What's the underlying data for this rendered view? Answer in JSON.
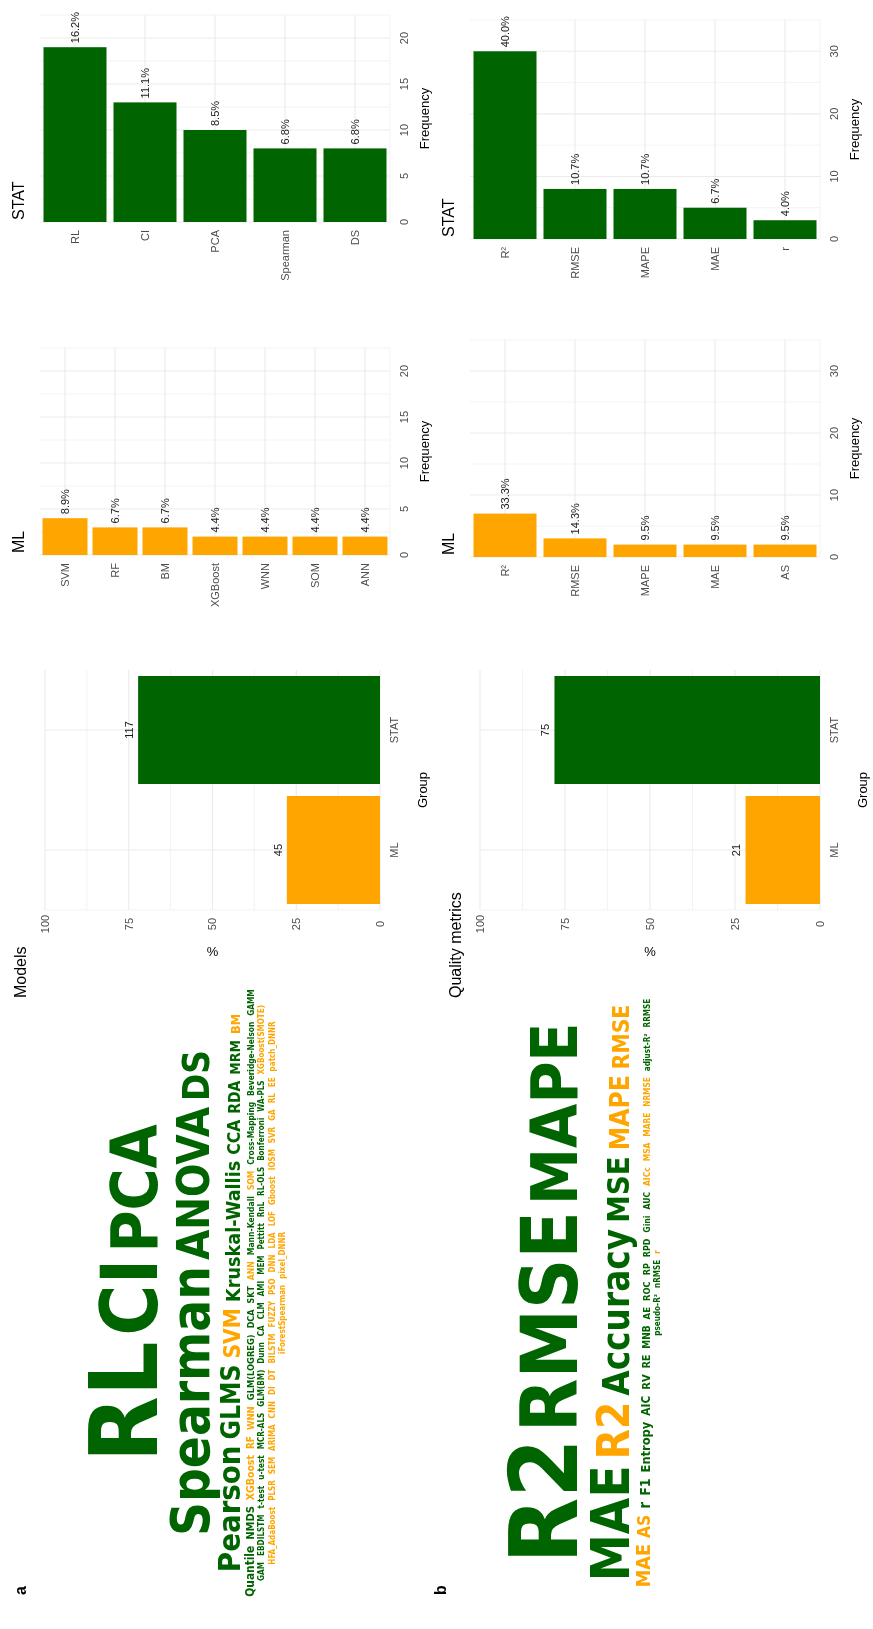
{
  "chart_data": [
    {
      "type": "bar",
      "title": "STAT",
      "ylabel": "Frequency",
      "categories": [
        "RL",
        "CI",
        "PCA",
        "Spearman",
        "DS"
      ],
      "values": [
        19,
        13,
        10,
        8,
        8
      ],
      "color": "#006400",
      "ylim": [
        0,
        22.5
      ],
      "yticks": [
        0,
        {
          "value": 2.5,
          "label": null
        },
        5,
        {
          "value": 7.5,
          "label": null
        },
        10,
        {
          "value": 12.5,
          "label": null
        },
        15,
        {
          "value": 17.5,
          "label": null
        },
        20,
        {
          "value": 22.5,
          "label": null
        }
      ],
      "grid": true,
      "annotations": [
        {
          "text": "16.2%",
          "x": "RL",
          "y": 19
        },
        {
          "text": "11.1%",
          "x": "CI",
          "y": 13
        },
        {
          "text": "8.5%",
          "x": "PCA",
          "y": 10
        },
        {
          "text": "6.8%",
          "x": "Spearman",
          "y": 8
        },
        {
          "text": "6.8%",
          "x": "DS",
          "y": 8
        }
      ]
    },
    {
      "type": "bar",
      "title": "STAT",
      "ylabel": "Frequency",
      "categories": [
        "R²",
        "RMSE",
        "MAPE",
        "MAE",
        "r"
      ],
      "values": [
        30,
        8,
        8,
        5,
        3
      ],
      "color": "#006400",
      "ylim": [
        0,
        35
      ],
      "yticks": [
        0,
        {
          "value": 5,
          "label": null
        },
        10,
        {
          "value": 15,
          "label": null
        },
        20,
        {
          "value": 25,
          "label": null
        },
        30,
        {
          "value": 35,
          "label": null
        }
      ],
      "grid": true,
      "annotations": [
        {
          "text": "40.0%",
          "x": "R²",
          "y": 30
        },
        {
          "text": "10.7%",
          "x": "RMSE",
          "y": 8
        },
        {
          "text": "10.7%",
          "x": "MAPE",
          "y": 8
        },
        {
          "text": "6.7%",
          "x": "MAE",
          "y": 5
        },
        {
          "text": "4.0%",
          "x": "r",
          "y": 3
        }
      ]
    },
    {
      "type": "bar",
      "title": "ML",
      "ylabel": "Frequency",
      "categories": [
        "SVM",
        "RF",
        "BM",
        "XGBoost",
        "WNN",
        "SOM",
        "ANN"
      ],
      "values": [
        4,
        3,
        3,
        2,
        2,
        2,
        2
      ],
      "color": "#ffa500",
      "ylim": [
        0,
        22.5
      ],
      "yticks": [
        0,
        {
          "value": 2.5,
          "label": null
        },
        5,
        {
          "value": 7.5,
          "label": null
        },
        10,
        {
          "value": 12.5,
          "label": null
        },
        15,
        {
          "value": 17.5,
          "label": null
        },
        20,
        {
          "value": 22.5,
          "label": null
        }
      ],
      "grid": true,
      "annotations": [
        {
          "text": "8.9%",
          "x": "SVM",
          "y": 4
        },
        {
          "text": "6.7%",
          "x": "RF",
          "y": 3
        },
        {
          "text": "6.7%",
          "x": "BM",
          "y": 3
        },
        {
          "text": "4.4%",
          "x": "XGBoost",
          "y": 2
        },
        {
          "text": "4.4%",
          "x": "WNN",
          "y": 2
        },
        {
          "text": "4.4%",
          "x": "SOM",
          "y": 2
        },
        {
          "text": "4.4%",
          "x": "ANN",
          "y": 2
        }
      ]
    },
    {
      "type": "bar",
      "title": "ML",
      "ylabel": "Frequency",
      "categories": [
        "R²",
        "RMSE",
        "MAPE",
        "MAE",
        "AS"
      ],
      "values": [
        7,
        3,
        2,
        2,
        2
      ],
      "color": "#ffa500",
      "ylim": [
        0,
        35
      ],
      "yticks": [
        0,
        {
          "value": 5,
          "label": null
        },
        10,
        {
          "value": 15,
          "label": null
        },
        20,
        {
          "value": 25,
          "label": null
        },
        30,
        {
          "value": 35,
          "label": null
        }
      ],
      "grid": true,
      "annotations": [
        {
          "text": "33.3%",
          "x": "R²",
          "y": 7
        },
        {
          "text": "14.3%",
          "x": "RMSE",
          "y": 3
        },
        {
          "text": "9.5%",
          "x": "MAPE",
          "y": 2
        },
        {
          "text": "9.5%",
          "x": "MAE",
          "y": 2
        },
        {
          "text": "9.5%",
          "x": "AS",
          "y": 2
        }
      ]
    },
    {
      "type": "bar",
      "orientation": "horizontal",
      "title": "Models",
      "xlabel": "%",
      "ylabel": "Group",
      "categories": [
        "STAT",
        "ML"
      ],
      "values": [
        72.2,
        27.8
      ],
      "colors": [
        "#006400",
        "#ffa500"
      ],
      "xlim": [
        100,
        0
      ],
      "xticks": [
        100,
        {
          "value": 87.5,
          "label": null
        },
        75,
        {
          "value": 62.5,
          "label": null
        },
        50,
        {
          "value": 37.5,
          "label": null
        },
        25,
        {
          "value": 12.5,
          "label": null
        },
        0
      ],
      "grid": true,
      "annotations": [
        {
          "text": "117",
          "x": 72.2,
          "y": "STAT"
        },
        {
          "text": "45",
          "x": 27.8,
          "y": "ML"
        }
      ]
    },
    {
      "type": "bar",
      "orientation": "horizontal",
      "title": "Quality metrics",
      "xlabel": "%",
      "ylabel": "Group",
      "categories": [
        "STAT",
        "ML"
      ],
      "values": [
        78.1,
        21.9
      ],
      "colors": [
        "#006400",
        "#ffa500"
      ],
      "xlim": [
        100,
        0
      ],
      "xticks": [
        100,
        {
          "value": 87.5,
          "label": null
        },
        75,
        {
          "value": 62.5,
          "label": null
        },
        50,
        {
          "value": 37.5,
          "label": null
        },
        25,
        {
          "value": 12.5,
          "label": null
        },
        0
      ],
      "grid": true,
      "annotations": [
        {
          "text": "75",
          "x": 78.1,
          "y": "STAT"
        },
        {
          "text": "21",
          "x": 21.9,
          "y": "ML"
        }
      ]
    },
    {
      "type": "other",
      "annotations": [
        "a"
      ],
      "categories": [
        "RL",
        "CI",
        "PCA",
        "Spearman",
        "ANOVA",
        "DS",
        "Pearson",
        "GLMS",
        "SVM",
        "Kruskal-Wallis",
        "CCA",
        "RDA",
        "MRM",
        "BM",
        "Quantile",
        "NMDS",
        "XGBoost",
        "RF",
        "WNN",
        "GLM(LOGREG)",
        "DCA",
        "SKT",
        "ANN",
        "Mann-Kendall",
        "SOM",
        "Cross-Mapping",
        "Beveridge-Nelson",
        "GAMM",
        "GAM",
        "EBDILSTM",
        "t-test",
        "u-test",
        "MCR-ALS",
        "GLM(BM)",
        "Dunn",
        "CA",
        "CLM",
        "AMI",
        "MEM",
        "Pettitt",
        "RnL",
        "RL-OLS",
        "Bonferroni",
        "WA-PLS",
        "XGBoost(SMOTE)",
        "HFA_AdaBoost",
        "PLSR",
        "SEM",
        "ARIMA",
        "CNN",
        "DI",
        "DT",
        "BILSTM",
        "FUZZY",
        "PSO",
        "DNN",
        "LDA",
        "LOF",
        "Gboost",
        "IOSM",
        "SVR",
        "GA",
        "RL",
        "EE",
        "patch_DNNR",
        "iForestSpearman",
        "pixel_DNNR"
      ],
      "colors": [
        "#006400",
        "#006400",
        "#006400",
        "#006400",
        "#006400",
        "#006400",
        "#006400",
        "#006400",
        "#ffa500",
        "#006400",
        "#006400",
        "#006400",
        "#006400",
        "#ffa500",
        "#006400",
        "#006400",
        "#ffa500",
        "#ffa500",
        "#ffa500",
        "#006400",
        "#006400",
        "#006400",
        "#ffa500",
        "#006400",
        "#ffa500",
        "#006400",
        "#006400",
        "#006400",
        "#006400",
        "#006400",
        "#006400",
        "#006400",
        "#006400",
        "#006400",
        "#006400",
        "#006400",
        "#006400",
        "#006400",
        "#006400",
        "#006400",
        "#006400",
        "#006400",
        "#006400",
        "#006400",
        "#ffa500",
        "#ffa500",
        "#ffa500",
        "#ffa500",
        "#ffa500",
        "#ffa500",
        "#ffa500",
        "#ffa500",
        "#ffa500",
        "#ffa500",
        "#ffa500",
        "#ffa500",
        "#ffa500",
        "#ffa500",
        "#ffa500",
        "#ffa500",
        "#ffa500",
        "#ffa500",
        "#ffa500",
        "#ffa500",
        "#ffa500",
        "#ffa500",
        "#ffa500"
      ]
    },
    {
      "type": "other",
      "annotations": [
        "b"
      ],
      "categories": [
        "R2",
        "RMSE",
        "MAPE",
        "MAE",
        "R2",
        "Accuracy",
        "MSE",
        "MAPE",
        "RMSE",
        "MAE",
        "AS",
        "r",
        "F1",
        "Entropy",
        "AIC",
        "RV",
        "RE",
        "MNB",
        "AE",
        "ROC",
        "RP",
        "RPD",
        "Gini",
        "AUC",
        "AICc",
        "MSA",
        "MARE",
        "NRMSE",
        "adjust-R²",
        "RRMSE",
        "pseudo-R²",
        "nRMSE",
        "r"
      ],
      "colors": [
        "#006400",
        "#006400",
        "#006400",
        "#006400",
        "#ffa500",
        "#006400",
        "#006400",
        "#ffa500",
        "#ffa500",
        "#ffa500",
        "#ffa500",
        "#006400",
        "#006400",
        "#006400",
        "#006400",
        "#006400",
        "#006400",
        "#006400",
        "#006400",
        "#006400",
        "#006400",
        "#006400",
        "#006400",
        "#006400",
        "#ffa500",
        "#ffa500",
        "#ffa500",
        "#ffa500",
        "#006400",
        "#006400",
        "#006400",
        "#006400",
        "#ffa500"
      ]
    }
  ]
}
